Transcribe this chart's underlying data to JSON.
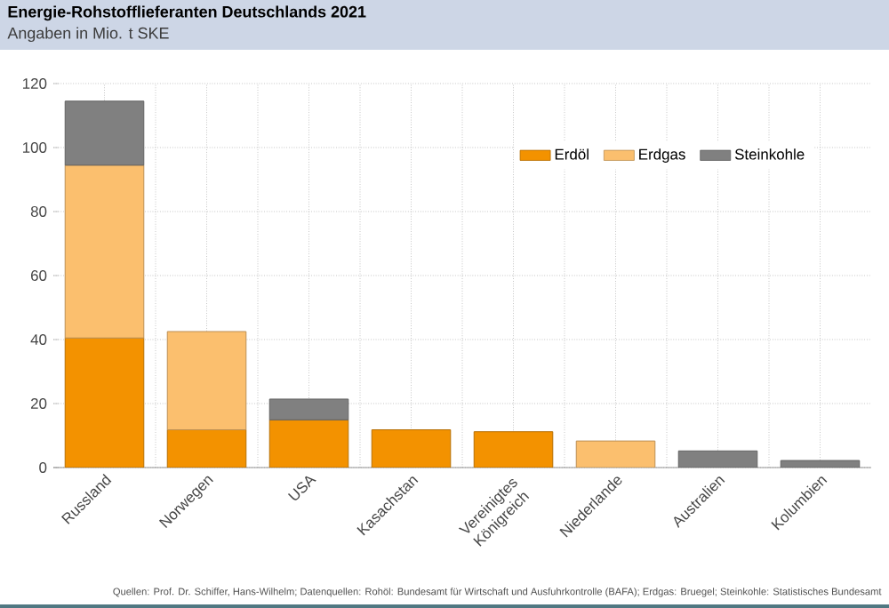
{
  "chart_data": {
    "type": "bar",
    "title": "Energie-Rohstofflieferanten Deutschlands 2021",
    "subtitle": "Angaben in Mio. t SKE",
    "categories": [
      "Russland",
      "Norwegen",
      "USA",
      "Kasachstan",
      "Vereinigtes Königreich",
      "Niederlande",
      "Australien",
      "Kolumbien"
    ],
    "series": [
      {
        "name": "Erdöl",
        "color": "#f39200",
        "values": [
          40.5,
          11.8,
          14.9,
          11.8,
          11.2,
          null,
          null,
          null
        ]
      },
      {
        "name": "Erdgas",
        "color": "#fbbf6e",
        "values": [
          54,
          30.7,
          null,
          null,
          null,
          8.3,
          null,
          null
        ]
      },
      {
        "name": "Steinkohle",
        "color": "#808080",
        "values": [
          20,
          null,
          6.5,
          null,
          null,
          null,
          5.2,
          2.2
        ]
      }
    ],
    "stacked": true,
    "ylim": [
      0,
      120
    ],
    "yticks": [
      0,
      20,
      40,
      60,
      80,
      100,
      120
    ],
    "grid": true,
    "legend": "top right",
    "annotations": [
      "Quellen: Prof. Dr. Schiffer, Hans-Wilhelm; Datenquellen: Rohöl: Bundesamt für Wirtschaft und Ausfuhrkontrolle (BAFA); Erdgas: Bruegel; Steinkohle: Statistisches Bundesamt"
    ]
  }
}
